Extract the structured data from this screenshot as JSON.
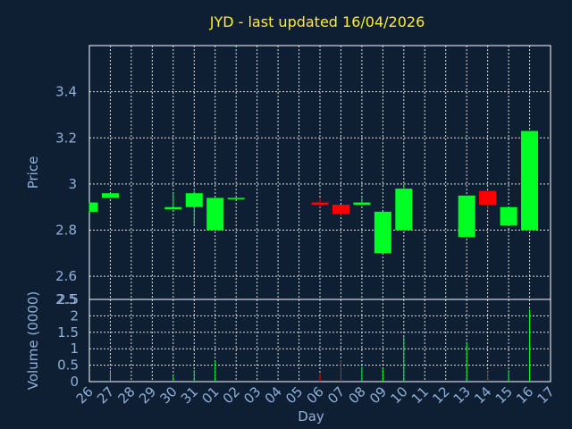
{
  "chart_data": {
    "type": "candlestick",
    "title": "JYD - last updated 16/04/2026",
    "xlabel": "Day",
    "price_ylabel": "Price",
    "volume_ylabel": "Volume (0000)",
    "categories": [
      "26",
      "27",
      "28",
      "29",
      "30",
      "31",
      "01",
      "02",
      "03",
      "04",
      "05",
      "06",
      "07",
      "08",
      "09",
      "10",
      "11",
      "12",
      "13",
      "14",
      "15",
      "16",
      "17"
    ],
    "price_ylim": [
      2.5,
      3.6
    ],
    "price_ticks": [
      "2.5",
      "2.6",
      "2.8",
      "3",
      "3.2",
      "3.4"
    ],
    "price_tick_values": [
      2.5,
      2.6,
      2.8,
      3.0,
      3.2,
      3.4
    ],
    "volume_ylim": [
      0,
      2.5
    ],
    "volume_ticks": [
      "0",
      "0.5",
      "1",
      "1.5",
      "2",
      "2.5"
    ],
    "volume_tick_values": [
      0,
      0.5,
      1.0,
      1.5,
      2.0,
      2.5
    ],
    "grid": true,
    "up_color": "#00ff22",
    "down_color": "#ff0000",
    "candles": [
      {
        "day": "26",
        "open": 2.88,
        "close": 2.92,
        "high": 2.92,
        "low": 2.88,
        "volume": 0.0
      },
      {
        "day": "27",
        "open": 2.94,
        "close": 2.96,
        "high": 2.96,
        "low": 2.94,
        "volume": 0.35
      },
      {
        "day": "30",
        "open": 2.89,
        "close": 2.9,
        "high": 2.96,
        "low": 2.89,
        "volume": 0.2
      },
      {
        "day": "31",
        "open": 2.9,
        "close": 2.96,
        "high": 2.97,
        "low": 2.82,
        "volume": 0.35
      },
      {
        "day": "01",
        "open": 2.8,
        "close": 2.94,
        "high": 2.94,
        "low": 2.8,
        "volume": 0.65
      },
      {
        "day": "02",
        "open": 2.935,
        "close": 2.94,
        "high": 2.94,
        "low": 2.935,
        "volume": 0.0
      },
      {
        "day": "06",
        "open": 2.92,
        "close": 2.91,
        "high": 2.94,
        "low": 2.9,
        "volume": 0.25
      },
      {
        "day": "07",
        "open": 2.91,
        "close": 2.87,
        "high": 2.91,
        "low": 2.86,
        "volume": 0.65
      },
      {
        "day": "08",
        "open": 2.91,
        "close": 2.92,
        "high": 2.94,
        "low": 2.91,
        "volume": 0.45
      },
      {
        "day": "09",
        "open": 2.7,
        "close": 2.88,
        "high": 2.88,
        "low": 2.7,
        "volume": 0.4
      },
      {
        "day": "10",
        "open": 2.8,
        "close": 2.98,
        "high": 3.0,
        "low": 2.8,
        "volume": 1.35
      },
      {
        "day": "13",
        "open": 2.77,
        "close": 2.95,
        "high": 2.95,
        "low": 2.77,
        "volume": 1.2
      },
      {
        "day": "14",
        "open": 2.97,
        "close": 2.91,
        "high": 2.97,
        "low": 2.89,
        "volume": 0.35
      },
      {
        "day": "15",
        "open": 2.82,
        "close": 2.9,
        "high": 2.9,
        "low": 2.82,
        "volume": 0.35
      },
      {
        "day": "16",
        "open": 2.8,
        "close": 3.23,
        "high": 3.23,
        "low": 2.8,
        "volume": 2.2
      }
    ]
  }
}
